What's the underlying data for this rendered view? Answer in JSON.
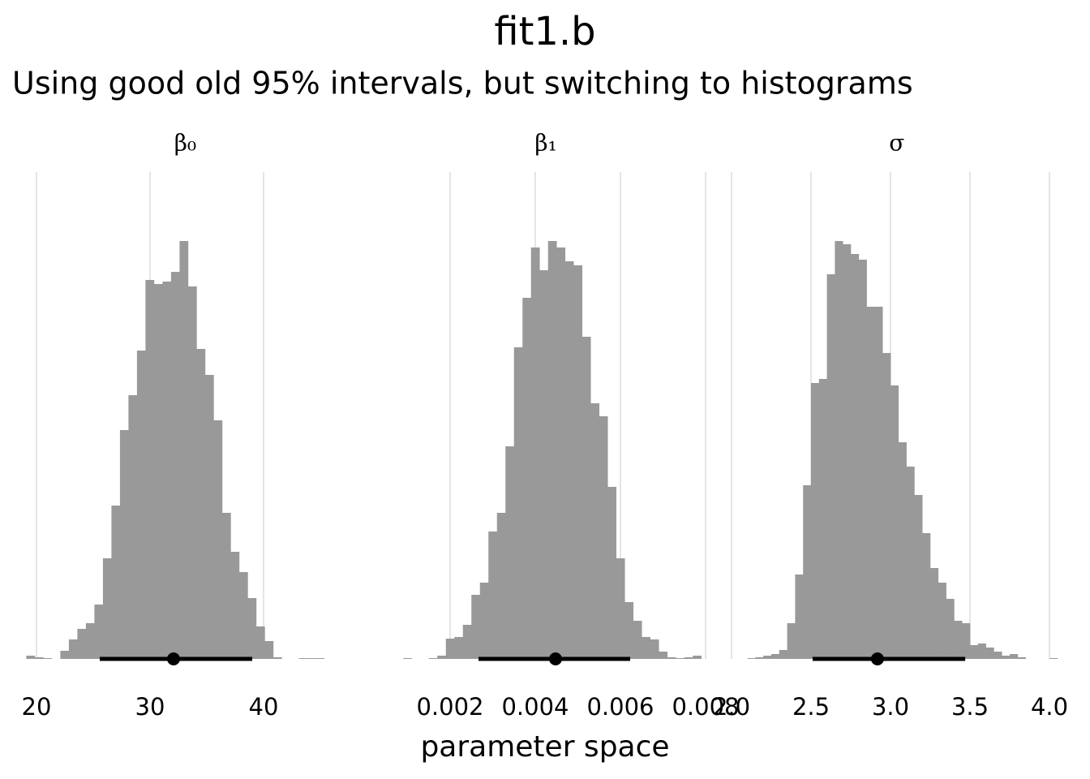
{
  "title": "fit1.b",
  "subtitle": "Using good old 95% intervals, but switching to histograms",
  "x_label": "parameter space",
  "chart_data": [
    {
      "type": "histogram",
      "title": "β₀",
      "color": "#999999",
      "bins": [
        19.1,
        19.85,
        20.6,
        21.35,
        22.1,
        22.85,
        23.6,
        24.35,
        25.1,
        25.85,
        26.6,
        27.35,
        28.1,
        28.85,
        29.6,
        30.35,
        31.1,
        31.85,
        32.6,
        33.35,
        34.1,
        34.85,
        35.6,
        36.35,
        37.1,
        37.85,
        38.6,
        39.35,
        40.1,
        40.85,
        41.6,
        42.35,
        43.1,
        43.85,
        44.6,
        45.35,
        46.1,
        46.85
      ],
      "values": [
        4,
        2,
        1,
        0,
        10,
        24,
        37,
        44,
        67,
        124,
        189,
        282,
        325,
        380,
        467,
        462,
        465,
        477,
        515,
        459,
        382,
        350,
        294,
        180,
        132,
        107,
        75,
        40,
        22,
        2,
        0,
        0,
        1,
        1,
        1,
        0,
        0
      ],
      "interval": {
        "point": 32.07,
        "lower": 25.57,
        "upper": 39.0
      },
      "xlim": [
        19.1,
        47.1
      ],
      "ylim": [
        0,
        600
      ],
      "xticks": [
        20,
        30,
        40
      ],
      "grid": true
    },
    {
      "type": "histogram",
      "title": "β₁",
      "color": "#999999",
      "bins": [
        0.0009,
        0.0011,
        0.0013,
        0.0015,
        0.0017,
        0.0019,
        0.0021,
        0.0023,
        0.0025,
        0.0027,
        0.0029,
        0.0031,
        0.0033,
        0.0035,
        0.0037,
        0.0039,
        0.0041,
        0.0043,
        0.0045,
        0.0047,
        0.0049,
        0.0051,
        0.0053,
        0.0055,
        0.0057,
        0.0059,
        0.0061,
        0.0063,
        0.0065,
        0.0067,
        0.0069,
        0.0071,
        0.0073,
        0.0075,
        0.0077,
        0.0079
      ],
      "values": [
        1,
        0,
        0,
        1,
        4,
        25,
        27,
        42,
        79,
        94,
        157,
        180,
        262,
        384,
        445,
        507,
        479,
        515,
        507,
        490,
        485,
        397,
        315,
        299,
        212,
        124,
        70,
        47,
        27,
        24,
        9,
        2,
        1,
        2,
        4
      ],
      "interval": {
        "point": 0.004476,
        "lower": 0.002667,
        "upper": 0.006229
      },
      "xlim": [
        0.0005,
        0.008
      ],
      "ylim": [
        0,
        600
      ],
      "xticks": [
        0.002,
        0.004,
        0.006,
        0.008
      ],
      "grid": true
    },
    {
      "type": "histogram",
      "title": "σ",
      "color": "#999999",
      "bins": [
        2.1,
        2.15,
        2.2,
        2.25,
        2.3,
        2.35,
        2.4,
        2.45,
        2.5,
        2.55,
        2.6,
        2.65,
        2.7,
        2.75,
        2.8,
        2.85,
        2.9,
        2.95,
        3.0,
        3.05,
        3.1,
        3.15,
        3.2,
        3.25,
        3.3,
        3.35,
        3.4,
        3.45,
        3.5,
        3.55,
        3.6,
        3.65,
        3.7,
        3.75,
        3.8,
        3.85,
        3.9,
        3.95,
        4.0,
        4.05
      ],
      "values": [
        1,
        2,
        4,
        6,
        11,
        44,
        104,
        214,
        340,
        345,
        474,
        515,
        511,
        499,
        492,
        434,
        434,
        377,
        337,
        267,
        237,
        202,
        155,
        112,
        94,
        74,
        47,
        44,
        17,
        19,
        14,
        9,
        4,
        6,
        2,
        0,
        0,
        0,
        1
      ],
      "interval": {
        "point": 2.918,
        "lower": 2.51,
        "upper": 3.47
      },
      "xlim": [
        2.0,
        4.08
      ],
      "ylim": [
        0,
        600
      ],
      "xticks": [
        {
          "value": 2,
          "label": "2.0"
        },
        2.5,
        {
          "value": 3,
          "label": "3.0"
        },
        3.5,
        {
          "value": 4,
          "label": "4.0"
        }
      ],
      "grid": true
    }
  ]
}
